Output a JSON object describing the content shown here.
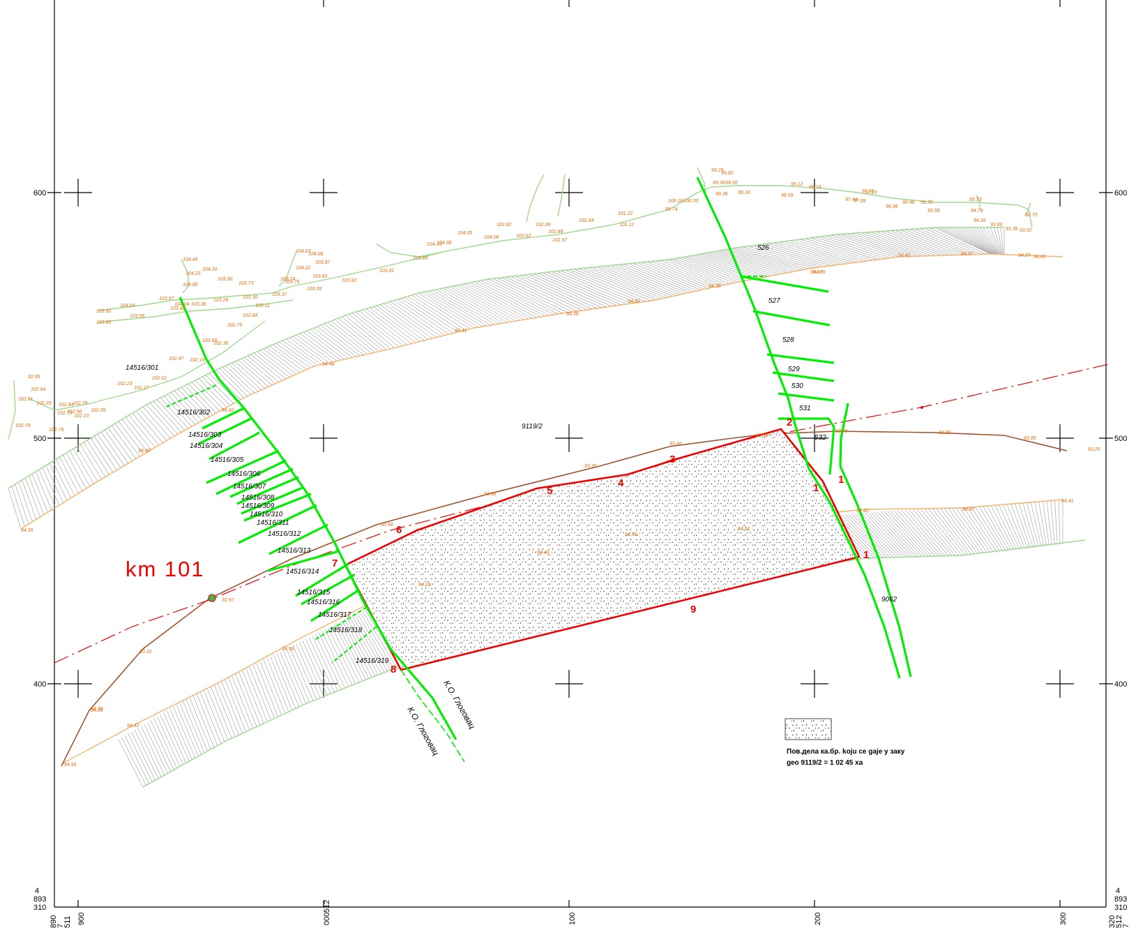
{
  "map": {
    "grid": {
      "y_labels": [
        "600",
        "500",
        "400"
      ],
      "x_labels": [
        "900",
        "000",
        "100",
        "200",
        "300"
      ],
      "x_prefix_000": "512",
      "x_prefix_000_sub": "7",
      "corner_left_bottom": [
        "4",
        "893",
        "310"
      ],
      "corner_right_bottom": [
        "4",
        "893",
        "310"
      ],
      "x_corner_left": [
        "511",
        "7",
        "890"
      ],
      "x_corner_right": [
        "512",
        "7",
        "320"
      ]
    },
    "km_marker": "km  101",
    "parcels": {
      "main": "9119/2",
      "road": "9062",
      "p527": "527",
      "p528": "528",
      "p529": "529",
      "p530": "530",
      "p531": "531",
      "p532": "532",
      "p526": "526",
      "list": [
        "14516/301",
        "14516/302",
        "14516/303",
        "14516/304",
        "14516/305",
        "14516/306",
        "14516/307",
        "14516/308",
        "14516/309",
        "14516/310",
        "14516/311",
        "14516/312",
        "14516/313",
        "14516/314",
        "14516/315",
        "14516/316",
        "14516/317",
        "14516/318",
        "14516/319"
      ]
    },
    "vertices": [
      "1",
      "2",
      "3",
      "4",
      "5",
      "6",
      "7",
      "8",
      "9",
      "1",
      "1"
    ],
    "ko_labels": [
      "К.О. Глоговац",
      "К.О. Глоговац"
    ],
    "legend": {
      "line1": "Пов.дела кa.бр. koju ce gaje y заку",
      "line2": "geo 9119/2 = 1 02 45 xa"
    },
    "elevations": {
      "upper": [
        "103.95",
        "103.86",
        "104.04",
        "103.59",
        "103.97",
        "103.42",
        "104.04",
        "104.08",
        "104.23",
        "104.45",
        "104.20",
        "103.90",
        "103.73",
        "103.28",
        "103.36",
        "103.30",
        "103.11",
        "103.37",
        "102.84",
        "102.75",
        "102.36",
        "102.60",
        "102.47",
        "102.19",
        "102.01",
        "102.17",
        "102.23",
        "104.63",
        "104.06",
        "103.87",
        "104.22",
        "103.74",
        "103.76",
        "103.65",
        "103.82",
        "103.05",
        "103.81",
        "103.89",
        "104.10",
        "104.05",
        "104.08",
        "104.06",
        "102.82",
        "102.62",
        "102.09",
        "101.97",
        "102.64",
        "101.89",
        "101.22",
        "101.12",
        "100.18",
        "100.30",
        "99.74",
        "99.29",
        "99.60",
        "99.58",
        "99.50",
        "99.36",
        "99.18",
        "99.12",
        "98.59",
        "98.14",
        "97.56",
        "97.44",
        "97.23",
        "97.09",
        "96.98",
        "96.46",
        "96.39",
        "95.58",
        "95.33",
        "94.78",
        "94.28",
        "93.90",
        "93.36",
        "92.73",
        "93.02",
        "92.95",
        "102.64",
        "102.61",
        "102.79",
        "102.79",
        "102.29",
        "102.79",
        "102.10",
        "102.09",
        "102.56",
        "102.79",
        "102.84",
        "102.60"
      ],
      "road_edge": [
        "94.35",
        "94.40",
        "94.42",
        "94.46",
        "94.41",
        "94.38",
        "94.42",
        "94.35",
        "94.35",
        "94.41",
        "94.37",
        "94.42",
        "94.56",
        "94.42",
        "94.39",
        "94.48",
        "94.49",
        "94.28",
        "94.51",
        "94.42",
        "94.47",
        "94.41",
        "94.35",
        "94.37"
      ],
      "brown": [
        "93.32",
        "92.97",
        "93.58",
        "93.66",
        "93.39",
        "93.66",
        "93.58",
        "93.79",
        "93.85",
        "93.85",
        "93.25",
        "94.39",
        "94.56"
      ]
    },
    "colors": {
      "cadastral_green": "#00ee00",
      "parcel_red": "#ee0000",
      "contour_green": "#9fd88e",
      "elev_orange": "#e46c0a",
      "brown_line": "#a0522d",
      "road_hatch": "#a9a9a9",
      "road_edge": "#f6b26b",
      "axis_red": "#ee0000"
    }
  }
}
